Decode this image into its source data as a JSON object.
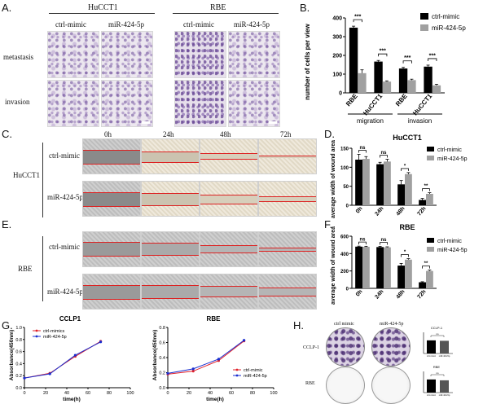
{
  "panels": {
    "A": {
      "letter": "A.",
      "group1": "HuCCT1",
      "group2": "RBE",
      "col1": "ctrl-mimic",
      "col2": "miR-424-5p",
      "col3": "ctrl-mimic",
      "col4": "miR-424-5p",
      "row1": "metastasis",
      "row2": "invasion"
    },
    "B": {
      "letter": "B."
    },
    "C": {
      "letter": "C.",
      "times": [
        "0h",
        "24h",
        "48h",
        "72h"
      ],
      "cell": "HuCCT1",
      "row1": "ctrl-mimic",
      "row2": "miR-424-5p"
    },
    "D": {
      "letter": "D."
    },
    "E": {
      "letter": "E.",
      "cell": "RBE",
      "row1": "ctrl-mimic",
      "row2": "miR-424-5p"
    },
    "F": {
      "letter": "F."
    },
    "G": {
      "letter": "G."
    },
    "H": {
      "letter": "H.",
      "col1": "ctrl mimic",
      "col2": "miR-424-5p",
      "row1": "CCLP-1",
      "row2": "RBE",
      "mini1": "CCLP-1",
      "mini2": "RBE"
    }
  },
  "chart_data": [
    {
      "id": "B",
      "type": "bar",
      "categories": [
        "RBE",
        "HuCCT1",
        "RBE",
        "HuCCT1"
      ],
      "groups": [
        "migration",
        "invasion"
      ],
      "ylabel": "number of cells  per view",
      "ylim": [
        0,
        400
      ],
      "yticks": [
        0,
        100,
        200,
        300,
        400
      ],
      "series": [
        {
          "name": "ctrl-mimic",
          "color": "#000000",
          "values": [
            348,
            167,
            130,
            140
          ],
          "err": [
            8,
            6,
            6,
            8
          ]
        },
        {
          "name": "miR-424-5p",
          "color": "#a0a0a0",
          "values": [
            105,
            60,
            68,
            40
          ],
          "err": [
            18,
            4,
            5,
            6
          ]
        }
      ],
      "sig": [
        "***",
        "***",
        "***",
        "***"
      ],
      "legend": "top-right"
    },
    {
      "id": "D",
      "type": "bar",
      "title": "HuCCT1",
      "categories": [
        "0h",
        "24h",
        "48h",
        "72h"
      ],
      "ylabel": "average width of wound area",
      "ylim": [
        0,
        150
      ],
      "yticks": [
        0,
        50,
        100,
        150
      ],
      "series": [
        {
          "name": "ctrl-mimic",
          "color": "#000000",
          "values": [
            120,
            108,
            55,
            14
          ],
          "err": [
            14,
            5,
            10,
            4
          ]
        },
        {
          "name": "miR-424-5p",
          "color": "#a0a0a0",
          "values": [
            122,
            115,
            82,
            30
          ],
          "err": [
            6,
            6,
            4,
            3
          ]
        }
      ],
      "sig": [
        "ns",
        "ns",
        "*",
        "**"
      ],
      "legend": "top-right"
    },
    {
      "id": "F",
      "type": "bar",
      "title": "RBE",
      "categories": [
        "0h",
        "24h",
        "48h",
        "72h"
      ],
      "ylabel": "average width of wound area",
      "ylim": [
        0,
        600
      ],
      "yticks": [
        0,
        200,
        400,
        600
      ],
      "series": [
        {
          "name": "ctrl-mimic",
          "color": "#000000",
          "values": [
            480,
            475,
            262,
            70
          ],
          "err": [
            6,
            8,
            25,
            6
          ]
        },
        {
          "name": "miR-424-5p",
          "color": "#a0a0a0",
          "values": [
            478,
            472,
            330,
            200
          ],
          "err": [
            6,
            6,
            12,
            10
          ]
        }
      ],
      "sig": [
        "ns",
        "ns",
        "*",
        "**"
      ],
      "legend": "top-right"
    },
    {
      "id": "G1",
      "type": "line",
      "title": "CCLP1",
      "xlabel": "time(h)",
      "ylabel": "Absorbance(450nm)",
      "xlim": [
        0,
        100
      ],
      "xticks": [
        0,
        20,
        40,
        60,
        80,
        100
      ],
      "ylim": [
        0,
        1.0
      ],
      "yticks": [
        0.0,
        0.2,
        0.4,
        0.6,
        0.8,
        1.0
      ],
      "x": [
        0,
        24,
        48,
        72
      ],
      "series": [
        {
          "name": "ctrl-mimics",
          "color": "#e0202a",
          "values": [
            0.16,
            0.24,
            0.52,
            0.77
          ]
        },
        {
          "name": "miR-424-5p",
          "color": "#1a2fd0",
          "values": [
            0.16,
            0.23,
            0.54,
            0.76
          ]
        }
      ],
      "legend": "top-left"
    },
    {
      "id": "G2",
      "type": "line",
      "title": "RBE",
      "xlabel": "time(h)",
      "ylabel": "Absorbance(450nm)",
      "xlim": [
        0,
        100
      ],
      "xticks": [
        0,
        20,
        40,
        60,
        80,
        100
      ],
      "ylim": [
        0,
        0.8
      ],
      "yticks": [
        0.0,
        0.2,
        0.4,
        0.6,
        0.8
      ],
      "x": [
        0,
        24,
        48,
        72
      ],
      "series": [
        {
          "name": "ctrl-mimic",
          "color": "#e0202a",
          "values": [
            0.18,
            0.22,
            0.36,
            0.62
          ]
        },
        {
          "name": "miR-424-5p",
          "color": "#1a2fd0",
          "values": [
            0.19,
            0.25,
            0.38,
            0.63
          ]
        }
      ],
      "legend": "bottom-right"
    },
    {
      "id": "H1",
      "type": "bar",
      "title": "CCLP-1",
      "categories": [
        "ctrl-mimic",
        "miR-424-5p"
      ],
      "values": [
        0.62,
        0.6
      ],
      "sig": [
        "ns"
      ]
    },
    {
      "id": "H2",
      "type": "bar",
      "title": "RBE",
      "categories": [
        "ctrl-mimic",
        "miR-424-5p"
      ],
      "values": [
        0.62,
        0.58
      ],
      "sig": [
        "ns"
      ]
    }
  ]
}
